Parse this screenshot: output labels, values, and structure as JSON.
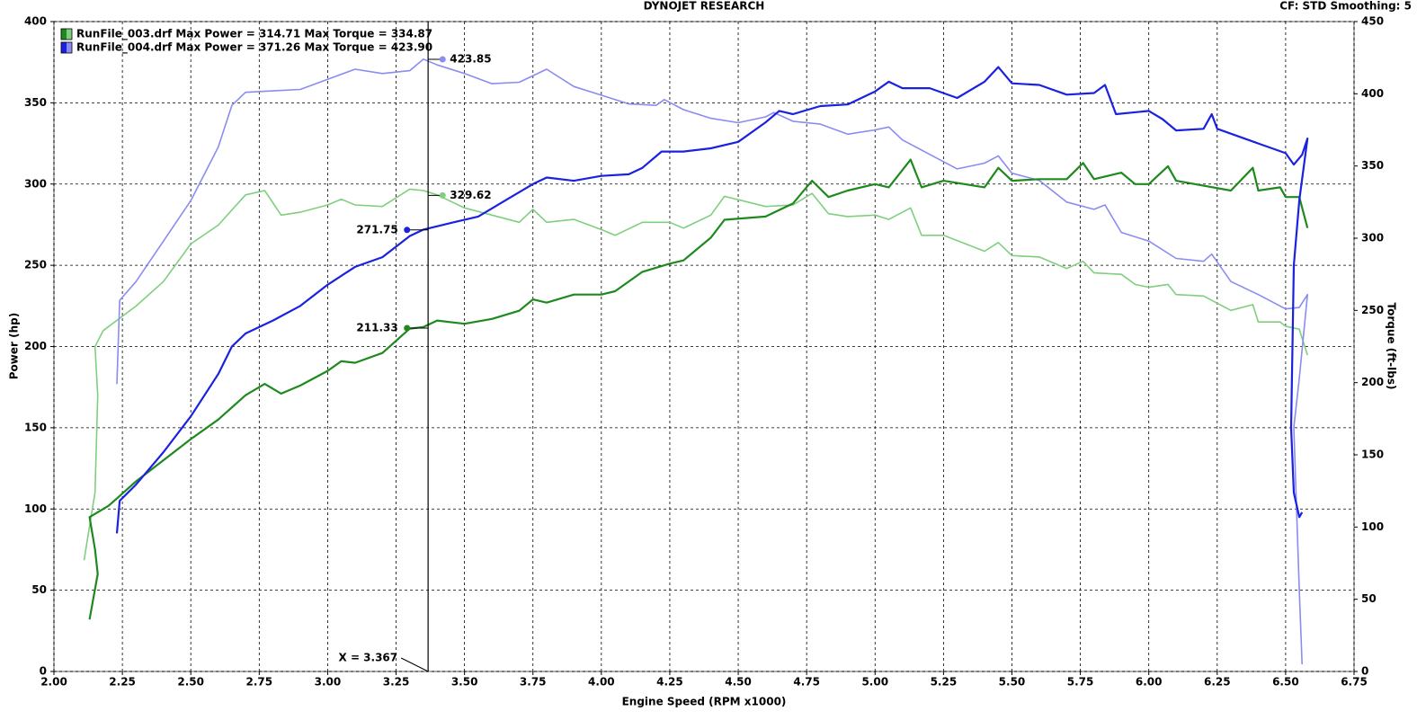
{
  "chart_data": {
    "type": "line",
    "title": "DYNOJET RESEARCH",
    "subtitle": "CF: STD  Smoothing: 5",
    "xlabel": "Engine Speed (RPM x1000)",
    "ylabel": "Power (hp)",
    "y2label": "Torque (ft-lbs)",
    "xlim": [
      2.0,
      6.75
    ],
    "xticks": [
      {
        "value": 2.0,
        "label": "2.00"
      },
      {
        "value": 2.25,
        "label": "2.25"
      },
      {
        "value": 2.5,
        "label": "2.50"
      },
      {
        "value": 2.75,
        "label": "2.75"
      },
      {
        "value": 3.0,
        "label": "3.00"
      },
      {
        "value": 3.25,
        "label": "3.25"
      },
      {
        "value": 3.5,
        "label": "3.50"
      },
      {
        "value": 3.75,
        "label": "3.75"
      },
      {
        "value": 4.0,
        "label": "4.00"
      },
      {
        "value": 4.25,
        "label": "4.25"
      },
      {
        "value": 4.5,
        "label": "4.50"
      },
      {
        "value": 4.75,
        "label": "4.75"
      },
      {
        "value": 5.0,
        "label": "5.00"
      },
      {
        "value": 5.25,
        "label": "5.25"
      },
      {
        "value": 5.5,
        "label": "5.50"
      },
      {
        "value": 5.75,
        "label": "5.75"
      },
      {
        "value": 6.0,
        "label": "6.00"
      },
      {
        "value": 6.25,
        "label": "6.25"
      },
      {
        "value": 6.5,
        "label": "6.50"
      },
      {
        "value": 6.75,
        "label": "6.75"
      }
    ],
    "ylim": [
      0,
      400
    ],
    "yticks": [
      0,
      50,
      100,
      150,
      200,
      250,
      300,
      350,
      400
    ],
    "y2lim": [
      0,
      450
    ],
    "y2ticks": [
      0,
      50,
      100,
      150,
      200,
      250,
      300,
      350,
      400,
      450
    ],
    "grid": true,
    "legend": [
      {
        "text": "RunFile_003.drf Max Power = 314.71 Max Torque = 334.87",
        "colors": [
          "#1e8a1e",
          "#7fcf7f"
        ]
      },
      {
        "text": "RunFile_004.drf Max Power = 371.26 Max Torque = 423.90",
        "colors": [
          "#1a22e0",
          "#8a8cf2"
        ]
      }
    ],
    "series": [
      {
        "color": "#7fcf7f",
        "axis": "y2",
        "x": [
          2.11,
          2.15,
          2.16,
          2.15,
          2.18,
          2.3,
          2.4,
          2.5,
          2.6,
          2.7,
          2.77,
          2.83,
          2.9,
          3.0,
          3.05,
          3.1,
          3.2,
          3.3,
          3.35,
          3.4,
          3.5,
          3.6,
          3.7,
          3.75,
          3.8,
          3.9,
          4.0,
          4.05,
          4.15,
          4.25,
          4.3,
          4.4,
          4.45,
          4.6,
          4.7,
          4.77,
          4.83,
          4.9,
          5.0,
          5.05,
          5.13,
          5.17,
          5.25,
          5.4,
          5.45,
          5.5,
          5.6,
          5.7,
          5.76,
          5.8,
          5.9,
          5.95,
          6.0,
          6.07,
          6.1,
          6.2,
          6.3,
          6.38,
          6.4,
          6.48,
          6.5,
          6.55,
          6.58
        ],
        "values": [
          77,
          124,
          191,
          225,
          236,
          253,
          270,
          296,
          309,
          330,
          333,
          316,
          318,
          323,
          327,
          323,
          322,
          334,
          333,
          330,
          321,
          316,
          311,
          320,
          311,
          313,
          306,
          302,
          311,
          311,
          307,
          316,
          329,
          322,
          323,
          331,
          317,
          315,
          316,
          313,
          321,
          302,
          302,
          291,
          297,
          288,
          287,
          279,
          284,
          276,
          275,
          268,
          266,
          268,
          261,
          260,
          250,
          254,
          242,
          242,
          239,
          237,
          219
        ]
      },
      {
        "color": "#8a8cf2",
        "axis": "y2",
        "x": [
          2.23,
          2.24,
          2.3,
          2.4,
          2.5,
          2.6,
          2.65,
          2.7,
          2.8,
          2.9,
          3.0,
          3.1,
          3.2,
          3.3,
          3.35,
          3.4,
          3.5,
          3.6,
          3.7,
          3.8,
          3.9,
          4.0,
          4.1,
          4.2,
          4.23,
          4.3,
          4.4,
          4.5,
          4.6,
          4.63,
          4.7,
          4.8,
          4.9,
          5.0,
          5.05,
          5.1,
          5.2,
          5.3,
          5.4,
          5.45,
          5.5,
          5.6,
          5.7,
          5.8,
          5.84,
          5.9,
          6.0,
          6.1,
          6.2,
          6.23,
          6.3,
          6.4,
          6.5,
          6.55,
          6.58,
          6.55,
          6.53,
          6.55,
          6.56
        ],
        "values": [
          199,
          257,
          270,
          298,
          326,
          363,
          392,
          401,
          402,
          403,
          410,
          417,
          414,
          416,
          424,
          420,
          414,
          407,
          408,
          417,
          405,
          399,
          393,
          392,
          396,
          389,
          383,
          380,
          384,
          387,
          381,
          379,
          372,
          375,
          377,
          368,
          358,
          348,
          352,
          357,
          345,
          340,
          325,
          320,
          323,
          304,
          298,
          286,
          284,
          289,
          270,
          261,
          251,
          252,
          261,
          203,
          169,
          56,
          5
        ]
      },
      {
        "color": "#1e8a1e",
        "axis": "y",
        "x": [
          2.13,
          2.16,
          2.15,
          2.13,
          2.2,
          2.3,
          2.4,
          2.5,
          2.6,
          2.7,
          2.77,
          2.83,
          2.9,
          3.0,
          3.05,
          3.1,
          3.2,
          3.3,
          3.35,
          3.4,
          3.5,
          3.6,
          3.7,
          3.75,
          3.8,
          3.9,
          4.0,
          4.05,
          4.15,
          4.25,
          4.3,
          4.4,
          4.45,
          4.6,
          4.7,
          4.77,
          4.83,
          4.9,
          5.0,
          5.05,
          5.13,
          5.17,
          5.25,
          5.4,
          5.45,
          5.5,
          5.6,
          5.7,
          5.76,
          5.8,
          5.9,
          5.95,
          6.0,
          6.07,
          6.1,
          6.2,
          6.3,
          6.38,
          6.4,
          6.48,
          6.5,
          6.55,
          6.58
        ],
        "values": [
          32,
          60,
          75,
          95,
          102,
          117,
          130,
          143,
          155,
          170,
          177,
          171,
          176,
          185,
          191,
          190,
          196,
          211,
          212,
          216,
          214,
          217,
          222,
          229,
          227,
          232,
          232,
          234,
          246,
          251,
          253,
          267,
          278,
          280,
          288,
          302,
          292,
          296,
          300,
          298,
          315,
          298,
          302,
          298,
          310,
          302,
          303,
          303,
          313,
          303,
          307,
          300,
          300,
          311,
          302,
          299,
          296,
          310,
          296,
          298,
          292,
          292,
          273
        ]
      },
      {
        "color": "#1a22e0",
        "axis": "y",
        "x": [
          2.23,
          2.24,
          2.3,
          2.4,
          2.5,
          2.6,
          2.65,
          2.7,
          2.8,
          2.9,
          3.0,
          3.1,
          3.2,
          3.3,
          3.35,
          3.45,
          3.55,
          3.65,
          3.75,
          3.8,
          3.9,
          4.0,
          4.1,
          4.15,
          4.22,
          4.3,
          4.4,
          4.5,
          4.6,
          4.65,
          4.7,
          4.8,
          4.9,
          5.0,
          5.05,
          5.1,
          5.2,
          5.3,
          5.4,
          5.45,
          5.5,
          5.6,
          5.7,
          5.8,
          5.84,
          5.88,
          6.0,
          6.05,
          6.1,
          6.2,
          6.23,
          6.25,
          6.4,
          6.5,
          6.53,
          6.56,
          6.58,
          6.55,
          6.53,
          6.52,
          6.53,
          6.55,
          6.56
        ],
        "values": [
          85,
          105,
          115,
          135,
          157,
          183,
          200,
          208,
          216,
          225,
          238,
          249,
          255,
          268,
          272,
          276,
          280,
          290,
          300,
          304,
          302,
          305,
          306,
          310,
          320,
          320,
          322,
          326,
          338,
          345,
          343,
          348,
          349,
          357,
          363,
          359,
          359,
          353,
          363,
          372,
          362,
          361,
          355,
          356,
          361,
          343,
          345,
          340,
          333,
          334,
          343,
          334,
          325,
          319,
          312,
          318,
          328,
          290,
          250,
          150,
          110,
          95,
          98
        ]
      }
    ],
    "cursor": {
      "x": 3.367,
      "label": "X = 3.367"
    },
    "markers": [
      {
        "x": 3.42,
        "value": 423.85,
        "axis": "y2",
        "color": "#8a8cf2"
      },
      {
        "x": 3.42,
        "value": 329.62,
        "axis": "y2",
        "color": "#7fcf7f"
      },
      {
        "x": 3.29,
        "value": 271.75,
        "axis": "y",
        "color": "#1a22e0"
      },
      {
        "x": 3.29,
        "value": 211.33,
        "axis": "y",
        "color": "#1e8a1e"
      }
    ]
  }
}
